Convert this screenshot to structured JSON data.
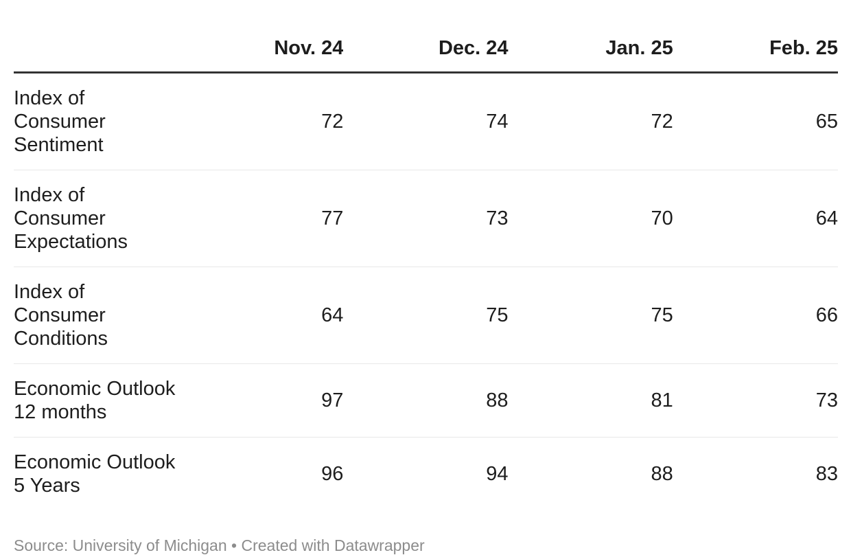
{
  "chart_data": {
    "type": "table",
    "title": "",
    "columns": [
      "",
      "Nov. 24",
      "Dec. 24",
      "Jan. 25",
      "Feb. 25"
    ],
    "rows": [
      {
        "label": "Index of Consumer Sentiment",
        "label_lines": [
          "Index of Consumer",
          "Sentiment"
        ],
        "values": [
          72,
          74,
          72,
          65
        ]
      },
      {
        "label": "Index of Consumer Expectations",
        "label_lines": [
          "Index of Consumer",
          "Expectations"
        ],
        "values": [
          77,
          73,
          70,
          64
        ]
      },
      {
        "label": "Index of Consumer Conditions",
        "label_lines": [
          "Index of Consumer",
          "Conditions"
        ],
        "values": [
          64,
          75,
          75,
          66
        ]
      },
      {
        "label": "Economic Outlook 12 months",
        "label_lines": [
          "Economic Outlook",
          "12 months"
        ],
        "values": [
          97,
          88,
          81,
          73
        ]
      },
      {
        "label": "Economic Outlook 5 Years",
        "label_lines": [
          "Economic Outlook",
          "5 Years"
        ],
        "values": [
          96,
          94,
          88,
          83
        ]
      }
    ],
    "layout": {
      "grid": "horizontal row dividers only",
      "header_rule": "thick dark line under header",
      "numeric_alignment": "right",
      "legend_position": "none"
    }
  },
  "footer": {
    "source_prefix": "Source: ",
    "source_name": "University of Michigan",
    "separator": " • ",
    "attribution_prefix": "Created with ",
    "attribution_name": "Datawrapper"
  },
  "colors": {
    "background": "#ffffff",
    "text": "#1d1d1d",
    "header_rule": "#333333",
    "row_divider": "#e8e8e8",
    "footer_text": "#8c8c8c"
  }
}
